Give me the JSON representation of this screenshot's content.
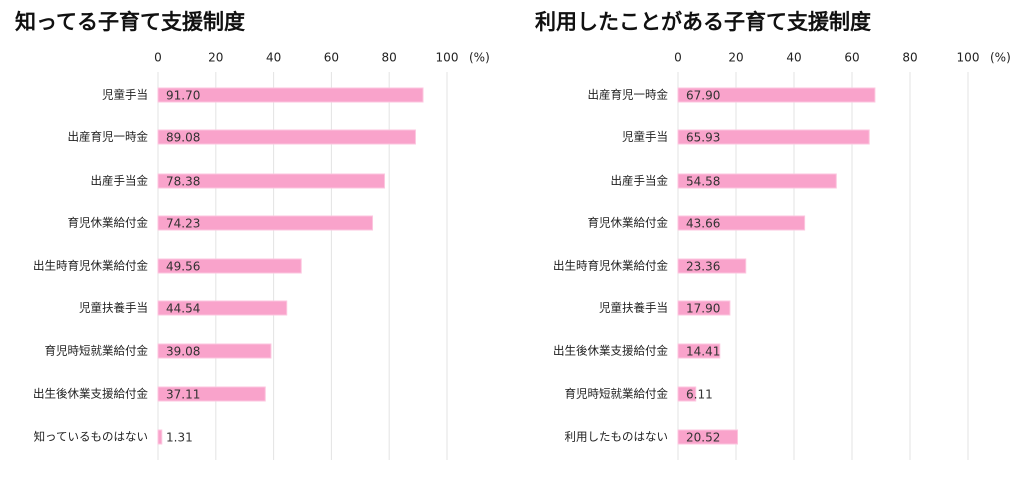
{
  "chart_data": [
    {
      "type": "barh",
      "title": "知ってる子育て支援制度",
      "xlabel": "(%)",
      "categories": [
        "児童手当",
        "出産育児一時金",
        "出産手当金",
        "育児休業給付金",
        "出生時育児休業給付金",
        "児童扶養手当",
        "育児時短就業給付金",
        "出生後休業支援給付金",
        "知っているものはない"
      ],
      "values": [
        91.7,
        89.08,
        78.38,
        74.23,
        49.56,
        44.54,
        39.08,
        37.11,
        1.31
      ],
      "value_labels": [
        "91.70",
        "89.08",
        "78.38",
        "74.23",
        "49.56",
        "44.54",
        "39.08",
        "37.11",
        "1.31"
      ],
      "color": "#f9a3cb",
      "xlim": [
        0,
        100
      ],
      "xticks": [
        0,
        20,
        40,
        60,
        80,
        100
      ],
      "grid": true
    },
    {
      "type": "barh",
      "title": "利用したことがある子育て支援制度",
      "xlabel": "(%)",
      "categories": [
        "出産育児一時金",
        "児童手当",
        "出産手当金",
        "育児休業給付金",
        "出生時育児休業給付金",
        "児童扶養手当",
        "出生後休業支援給付金",
        "育児時短就業給付金",
        "利用したものはない"
      ],
      "values": [
        67.9,
        65.93,
        54.58,
        43.66,
        23.36,
        17.9,
        14.41,
        6.11,
        20.52
      ],
      "value_labels": [
        "67.90",
        "65.93",
        "54.58",
        "43.66",
        "23.36",
        "17.90",
        "14.41",
        "6.11",
        "20.52"
      ],
      "color": "#f9a3cb",
      "xlim": [
        0,
        100
      ],
      "xticks": [
        0,
        20,
        40,
        60,
        80,
        100
      ],
      "grid": true
    }
  ]
}
